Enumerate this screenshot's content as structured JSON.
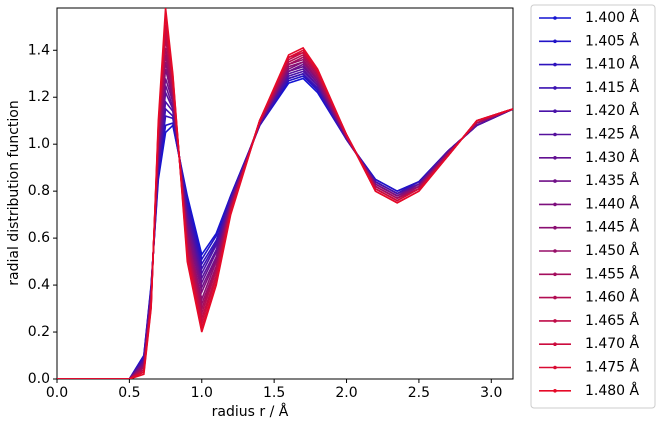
{
  "chart_data": {
    "type": "line",
    "xlabel": "radius r / Å",
    "ylabel": "radial distribution function",
    "x": [
      0,
      0.5,
      0.6,
      0.65,
      0.7,
      0.75,
      0.8,
      0.9,
      1.0,
      1.1,
      1.2,
      1.4,
      1.6,
      1.7,
      1.8,
      2.0,
      2.2,
      2.35,
      2.5,
      2.7,
      2.9,
      3.15
    ],
    "xlim": [
      0,
      3.15
    ],
    "ylim": [
      0,
      1.58
    ],
    "xticks": [
      {
        "value": 0,
        "label": "0.0"
      },
      {
        "value": 0.5,
        "label": "0.5"
      },
      {
        "value": 1,
        "label": "1.0"
      },
      {
        "value": 1.5,
        "label": "1.5"
      },
      {
        "value": 2,
        "label": "2.0"
      },
      {
        "value": 2.5,
        "label": "2.5"
      },
      {
        "value": 3,
        "label": "3.0"
      }
    ],
    "yticks": [
      {
        "value": 0,
        "label": "0.0"
      },
      0.2,
      0.4,
      0.6,
      0.8,
      {
        "value": 1,
        "label": "1.0"
      },
      1.2,
      1.4
    ],
    "legend": "outside-right",
    "series": [
      {
        "name": "1.400 Å",
        "color": "#1414d2",
        "values": [
          0,
          0,
          0.1,
          0.4,
          0.85,
          1.05,
          1.08,
          0.78,
          0.53,
          0.62,
          0.78,
          1.08,
          1.26,
          1.28,
          1.22,
          1.02,
          0.85,
          0.8,
          0.84,
          0.97,
          1.08,
          1.15
        ]
      },
      {
        "name": "1.405 Å",
        "color": "#2113c7",
        "values": [
          0,
          0,
          0.1,
          0.39,
          0.87,
          1.08,
          1.09,
          0.76,
          0.51,
          0.61,
          0.78,
          1.08,
          1.27,
          1.29,
          1.23,
          1.02,
          0.85,
          0.8,
          0.84,
          0.97,
          1.08,
          1.15
        ]
      },
      {
        "name": "1.410 Å",
        "color": "#2e13bd",
        "values": [
          0,
          0,
          0.09,
          0.39,
          0.88,
          1.12,
          1.11,
          0.75,
          0.49,
          0.59,
          0.77,
          1.08,
          1.28,
          1.3,
          1.23,
          1.02,
          0.84,
          0.79,
          0.84,
          0.97,
          1.08,
          1.15
        ]
      },
      {
        "name": "1.415 Å",
        "color": "#3b12b2",
        "values": [
          0,
          0,
          0.09,
          0.38,
          0.9,
          1.15,
          1.12,
          0.73,
          0.47,
          0.58,
          0.77,
          1.08,
          1.28,
          1.3,
          1.24,
          1.02,
          0.84,
          0.79,
          0.83,
          0.97,
          1.08,
          1.15
        ]
      },
      {
        "name": "1.420 Å",
        "color": "#4912a8",
        "values": [
          0,
          0,
          0.08,
          0.38,
          0.91,
          1.18,
          1.14,
          0.71,
          0.45,
          0.57,
          0.76,
          1.09,
          1.29,
          1.31,
          1.25,
          1.02,
          0.84,
          0.79,
          0.83,
          0.97,
          1.08,
          1.15
        ]
      },
      {
        "name": "1.425 Å",
        "color": "#56119d",
        "values": [
          0,
          0,
          0.08,
          0.37,
          0.93,
          1.22,
          1.15,
          0.69,
          0.43,
          0.55,
          0.76,
          1.09,
          1.3,
          1.32,
          1.25,
          1.03,
          0.83,
          0.78,
          0.83,
          0.97,
          1.08,
          1.15
        ]
      },
      {
        "name": "1.430 Å",
        "color": "#631092",
        "values": [
          0,
          0,
          0.07,
          0.36,
          0.94,
          1.25,
          1.16,
          0.68,
          0.41,
          0.54,
          0.75,
          1.09,
          1.31,
          1.33,
          1.26,
          1.03,
          0.83,
          0.78,
          0.83,
          0.96,
          1.09,
          1.15
        ]
      },
      {
        "name": "1.435 Å",
        "color": "#701088",
        "values": [
          0,
          0,
          0.07,
          0.36,
          0.96,
          1.28,
          1.18,
          0.66,
          0.39,
          0.52,
          0.75,
          1.09,
          1.31,
          1.34,
          1.26,
          1.03,
          0.83,
          0.78,
          0.82,
          0.96,
          1.09,
          1.15
        ]
      },
      {
        "name": "1.440 Å",
        "color": "#7d0f7d",
        "values": [
          0,
          0,
          0.06,
          0.35,
          0.98,
          1.32,
          1.19,
          0.64,
          0.37,
          0.51,
          0.74,
          1.09,
          1.32,
          1.35,
          1.27,
          1.03,
          0.83,
          0.78,
          0.82,
          0.96,
          1.09,
          1.15
        ]
      },
      {
        "name": "1.445 Å",
        "color": "#8a0e72",
        "values": [
          0,
          0,
          0.06,
          0.34,
          0.99,
          1.35,
          1.2,
          0.62,
          0.34,
          0.5,
          0.74,
          1.09,
          1.33,
          1.35,
          1.28,
          1.03,
          0.82,
          0.77,
          0.82,
          0.96,
          1.09,
          1.15
        ]
      },
      {
        "name": "1.450 Å",
        "color": "#970e68",
        "values": [
          0,
          0,
          0.05,
          0.34,
          1.01,
          1.38,
          1.22,
          0.61,
          0.32,
          0.48,
          0.73,
          1.09,
          1.34,
          1.36,
          1.28,
          1.03,
          0.82,
          0.77,
          0.82,
          0.96,
          1.09,
          1.15
        ]
      },
      {
        "name": "1.455 Å",
        "color": "#a40d5d",
        "values": [
          0,
          0,
          0.05,
          0.33,
          1.02,
          1.41,
          1.23,
          0.59,
          0.3,
          0.47,
          0.73,
          1.09,
          1.34,
          1.37,
          1.29,
          1.03,
          0.82,
          0.77,
          0.81,
          0.96,
          1.09,
          1.15
        ]
      },
      {
        "name": "1.460 Å",
        "color": "#b20d52",
        "values": [
          0,
          0,
          0.04,
          0.33,
          1.04,
          1.45,
          1.25,
          0.57,
          0.28,
          0.46,
          0.72,
          1.1,
          1.35,
          1.38,
          1.3,
          1.04,
          0.81,
          0.76,
          0.81,
          0.95,
          1.1,
          1.15
        ]
      },
      {
        "name": "1.465 Å",
        "color": "#bf0c48",
        "values": [
          0,
          0,
          0.04,
          0.32,
          1.05,
          1.48,
          1.26,
          0.55,
          0.26,
          0.44,
          0.72,
          1.1,
          1.36,
          1.39,
          1.3,
          1.04,
          0.81,
          0.76,
          0.81,
          0.95,
          1.1,
          1.15
        ]
      },
      {
        "name": "1.470 Å",
        "color": "#cc0b3d",
        "values": [
          0,
          0,
          0.03,
          0.31,
          1.07,
          1.51,
          1.27,
          0.54,
          0.24,
          0.43,
          0.71,
          1.1,
          1.37,
          1.39,
          1.31,
          1.04,
          0.81,
          0.76,
          0.81,
          0.95,
          1.1,
          1.15
        ]
      },
      {
        "name": "1.475 Å",
        "color": "#d90b33",
        "values": [
          0,
          0,
          0.03,
          0.31,
          1.08,
          1.55,
          1.29,
          0.52,
          0.22,
          0.41,
          0.71,
          1.1,
          1.37,
          1.4,
          1.31,
          1.04,
          0.8,
          0.75,
          0.8,
          0.95,
          1.1,
          1.15
        ]
      },
      {
        "name": "1.480 Å",
        "color": "#e60a28",
        "values": [
          0,
          0,
          0.02,
          0.3,
          1.1,
          1.58,
          1.3,
          0.5,
          0.2,
          0.4,
          0.7,
          1.1,
          1.38,
          1.41,
          1.32,
          1.04,
          0.8,
          0.75,
          0.8,
          0.95,
          1.1,
          1.15
        ]
      }
    ]
  }
}
